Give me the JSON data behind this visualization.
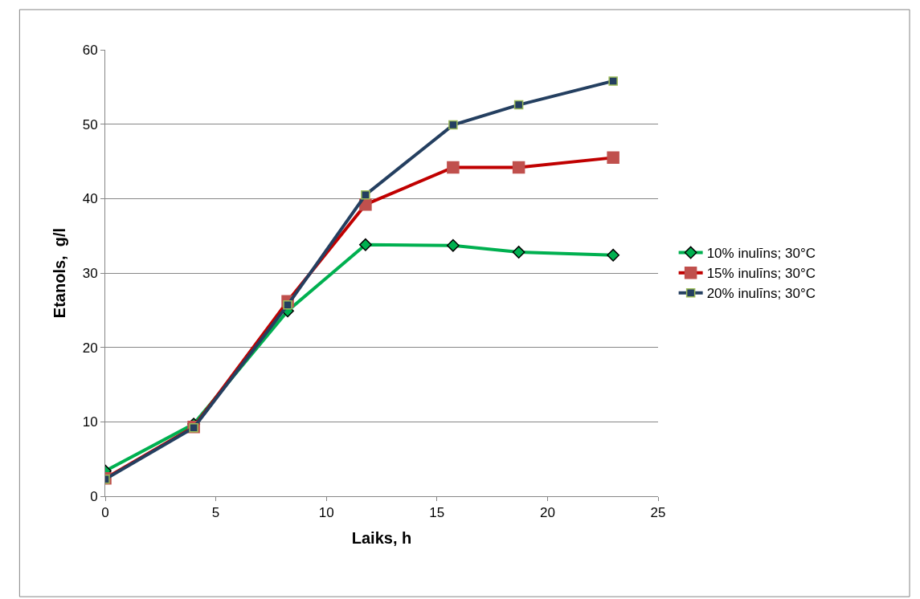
{
  "chart_data": {
    "type": "line",
    "xlabel": "Laiks, h",
    "ylabel": "Etanols,  g/l",
    "x": [
      0,
      4,
      8.25,
      11.77,
      15.73,
      18.7,
      22.97
    ],
    "series": [
      {
        "name": "10% inulīns; 30°C",
        "color": "#00b050",
        "marker": "diamond",
        "values": [
          3.4,
          9.7,
          24.9,
          33.8,
          33.7,
          32.8,
          32.4
        ]
      },
      {
        "name": "15% inulīns; 30°C",
        "color": "#c00000",
        "marker": "square",
        "values": [
          2.4,
          9.3,
          26.2,
          39.2,
          44.2,
          44.2,
          45.5
        ]
      },
      {
        "name": "20% inulīns; 30°C",
        "color": "#243f60",
        "marker": "square",
        "values": [
          2.3,
          9.2,
          25.7,
          40.5,
          49.9,
          52.6,
          55.8
        ]
      }
    ],
    "xlim": [
      0,
      25
    ],
    "xticks": [
      0,
      5,
      10,
      15,
      20,
      25
    ],
    "ylim": [
      0,
      60
    ],
    "yticks": [
      0,
      10,
      20,
      30,
      40,
      50,
      60
    ],
    "grid": "y",
    "legend": "right",
    "line_style": "solid"
  }
}
